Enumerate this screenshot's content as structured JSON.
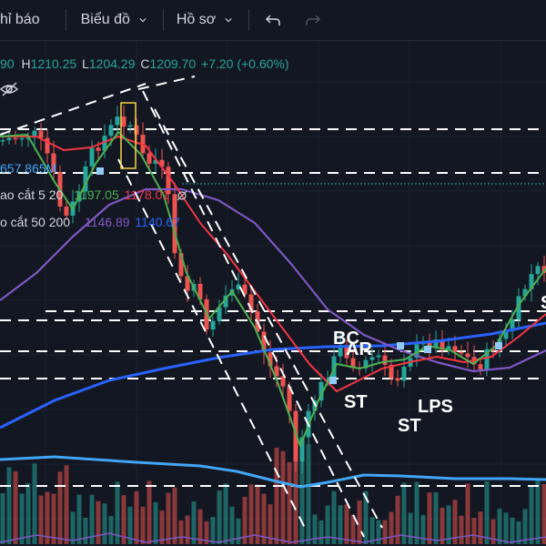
{
  "toolbar": {
    "indicators_label": "hỉ báo",
    "chart_type_label": "Biểu đồ",
    "profile_label": "Hồ sơ",
    "undo_icon": "undo-icon",
    "redo_icon": "redo-icon"
  },
  "ohlc": {
    "open_fragment": "90",
    "high_label": "H",
    "high": "1210.25",
    "low_label": "L",
    "low": "1204.29",
    "close_label": "C",
    "close": "1209.70",
    "change": "+7.20 (+0.60%)"
  },
  "indicators": {
    "volume_value": "657.865M",
    "ma_short_label": "ao cắt 5 20",
    "ma_short_val1": "1197.05",
    "ma_short_val2": "1178.01",
    "ma_long_label": "o cắt 50 200",
    "ma_long_val1": "1146.89",
    "ma_long_val2": "1140.67"
  },
  "colors": {
    "background": "#131722",
    "up": "#26a69a",
    "down": "#ef5350",
    "ma_fast": "#4caf50",
    "ma_slow": "#f23645",
    "ma_50": "#7e57c2",
    "ma_200": "#2962ff",
    "volume_ma": "#42a5f5"
  },
  "annotations": {
    "bc": "BC",
    "ar": "AR",
    "st1": "ST",
    "st2": "ST",
    "lps": "LPS",
    "s_edge": "S"
  }
}
